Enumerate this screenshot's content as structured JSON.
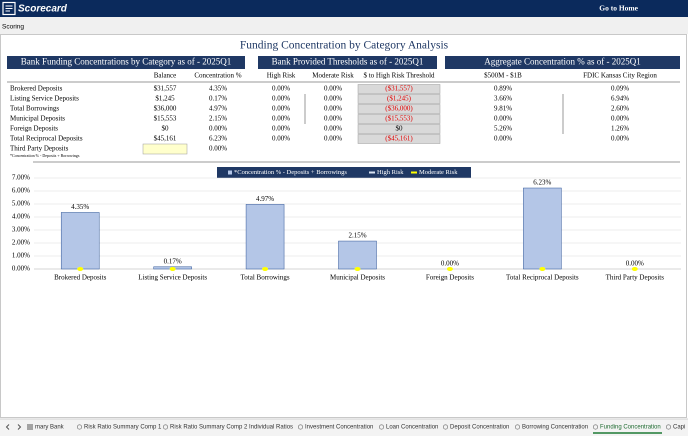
{
  "header": {
    "logo": "Scorecard",
    "link": "Go to Home",
    "breadcrumb": "Scoring",
    "title": "Funding Concentration by Category Analysis"
  },
  "sections": [
    "Bank Funding Concentrations by Category as of - 2025Q1",
    "Bank Provided Thresholds as of - 2025Q1",
    "Aggregate Concentration % as of - 2025Q1"
  ],
  "table": {
    "columns": [
      "Balance",
      "Concentration %",
      "High Risk",
      "Moderate Risk",
      "$ to High Risk Threshold",
      "$500M - $1B",
      "FDIC Kansas City Region"
    ],
    "rows": [
      [
        "Brokered Deposits",
        "$31,557",
        "4.35%",
        "0.00%",
        "0.00%",
        "($31,557)",
        "0.89%",
        "0.09%"
      ],
      [
        "Listing Service Deposits",
        "$1,245",
        "0.17%",
        "0.00%",
        "0.00%",
        "($1,245)",
        "3.66%",
        "6.94%"
      ],
      [
        "Total Borrowings",
        "$36,000",
        "4.97%",
        "0.00%",
        "0.00%",
        "($36,000)",
        "9.81%",
        "2.60%"
      ],
      [
        "Municipal Deposits",
        "$15,553",
        "2.15%",
        "0.00%",
        "0.00%",
        "($15,553)",
        "0.00%",
        "0.00%"
      ],
      [
        "Foreign Deposits",
        "$0",
        "0.00%",
        "0.00%",
        "0.00%",
        "$0",
        "5.26%",
        "1.26%"
      ],
      [
        "Total Reciprocal Deposits",
        "$45,161",
        "6.23%",
        "0.00%",
        "0.00%",
        "($45,161)",
        "0.00%",
        "0.00%"
      ],
      [
        "Third Party Deposits",
        null,
        "0.00%"
      ]
    ],
    "footnote": "*Concentration % - Deposits + Borrowings"
  },
  "chart_data": {
    "type": "bar",
    "categories": [
      "Brokered Deposits",
      "Listing Service Deposits",
      "Total Borrowings",
      "Municipal Deposits",
      "Foreign Deposits",
      "Total Reciprocal Deposits",
      "Third Party Deposits"
    ],
    "series": [
      {
        "name": "*Concentration % - Deposits + Borrowings",
        "color": "#b4c6e7",
        "values": [
          4.35,
          0.17,
          4.97,
          2.15,
          0,
          6.23,
          0
        ],
        "value_labels": [
          "4.35%",
          "0.17%",
          "4.97%",
          "2.15%",
          "0.00%",
          "6.23%",
          "0.00%"
        ]
      },
      {
        "name": "High Risk",
        "type": "line",
        "color": "#dae3f3",
        "values": [
          0,
          0,
          0,
          0,
          0,
          0,
          0
        ]
      },
      {
        "name": "Moderate Risk",
        "type": "line",
        "color": "#ffff00",
        "values": [
          0,
          0,
          0,
          0,
          0,
          0,
          0
        ]
      }
    ],
    "ylim": [
      0,
      7
    ],
    "yticks": [
      {
        "value": 0,
        "label": "0.00%"
      },
      {
        "value": 1,
        "label": "1.00%"
      },
      {
        "value": 2,
        "label": "2.00%"
      },
      {
        "value": 3,
        "label": "3.00%"
      },
      {
        "value": 4,
        "label": "4.00%"
      },
      {
        "value": 5,
        "label": "5.00%"
      },
      {
        "value": 6,
        "label": "6.00%"
      },
      {
        "value": 7,
        "label": "7.00%"
      }
    ],
    "grid": true
  },
  "tabs": [
    "mary Bank",
    "Risk Ratio Summary Comp 1",
    "Risk Ratio Summary Comp 2",
    "Individual Ratios",
    "Investment Concentration",
    "Loan Concentration",
    "Deposit Concentration",
    "Borrowing Concentration",
    "Funding Concentration",
    "Capi"
  ],
  "active_tab": 8
}
